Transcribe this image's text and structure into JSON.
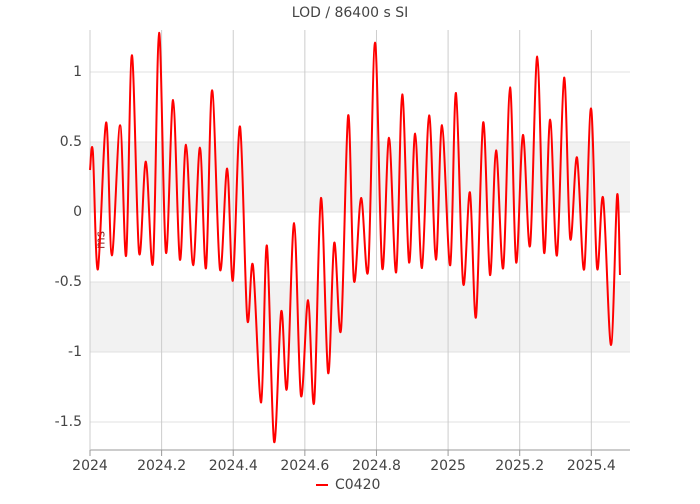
{
  "chart_data": {
    "type": "line",
    "title": "LOD / 86400 s SI",
    "y_label": "ms",
    "x": [
      2024.0,
      2024.008,
      2024.022,
      2024.045,
      2024.061,
      2024.084,
      2024.101,
      2024.117,
      2024.137,
      2024.156,
      2024.176,
      2024.193,
      2024.212,
      2024.232,
      2024.251,
      2024.268,
      2024.288,
      2024.307,
      2024.324,
      2024.341,
      2024.363,
      2024.383,
      2024.399,
      2024.419,
      2024.439,
      2024.455,
      2024.478,
      2024.494,
      2024.514,
      2024.534,
      2024.55,
      2024.57,
      2024.589,
      2024.609,
      2024.626,
      2024.645,
      2024.665,
      2024.682,
      2024.701,
      2024.721,
      2024.737,
      2024.757,
      2024.777,
      2024.796,
      2024.816,
      2024.835,
      2024.855,
      2024.872,
      2024.891,
      2024.908,
      2024.927,
      2024.947,
      2024.966,
      2024.983,
      2025.006,
      2025.022,
      2025.042,
      2025.061,
      2025.078,
      2025.098,
      2025.117,
      2025.134,
      2025.154,
      2025.173,
      2025.19,
      2025.209,
      2025.229,
      2025.249,
      2025.268,
      2025.285,
      2025.304,
      2025.324,
      2025.341,
      2025.36,
      2025.38,
      2025.399,
      2025.416,
      2025.433,
      2025.455,
      2025.472,
      2025.48
    ],
    "series": [
      {
        "name": "C0420",
        "color": "#ff0000",
        "values": [
          0.3,
          0.43,
          -0.41,
          0.64,
          -0.31,
          0.62,
          -0.31,
          1.12,
          -0.29,
          0.36,
          -0.36,
          1.28,
          -0.29,
          0.8,
          -0.34,
          0.48,
          -0.38,
          0.46,
          -0.4,
          0.87,
          -0.41,
          0.31,
          -0.49,
          0.61,
          -0.76,
          -0.38,
          -1.36,
          -0.24,
          -1.64,
          -0.71,
          -1.26,
          -0.08,
          -1.31,
          -0.63,
          -1.36,
          0.1,
          -1.15,
          -0.22,
          -0.84,
          0.69,
          -0.49,
          0.1,
          -0.41,
          1.21,
          -0.4,
          0.53,
          -0.43,
          0.84,
          -0.36,
          0.56,
          -0.4,
          0.69,
          -0.34,
          0.62,
          -0.38,
          0.85,
          -0.51,
          0.14,
          -0.75,
          0.64,
          -0.45,
          0.44,
          -0.4,
          0.89,
          -0.36,
          0.55,
          -0.24,
          1.11,
          -0.29,
          0.66,
          -0.31,
          0.96,
          -0.19,
          0.39,
          -0.41,
          0.74,
          -0.4,
          0.1,
          -0.95,
          0.12,
          -0.45
        ]
      }
    ],
    "xlim": [
      2024,
      2025.508
    ],
    "xticks": [
      2024,
      2024.2,
      2024.4,
      2024.6,
      2024.8,
      2025,
      2025.2,
      2025.4
    ],
    "ylim": [
      -1.7,
      1.3
    ],
    "yticks": [
      1,
      0.5,
      0,
      -0.5,
      -1,
      -1.5
    ],
    "grid": true,
    "bands": true,
    "legend": "bottom"
  }
}
